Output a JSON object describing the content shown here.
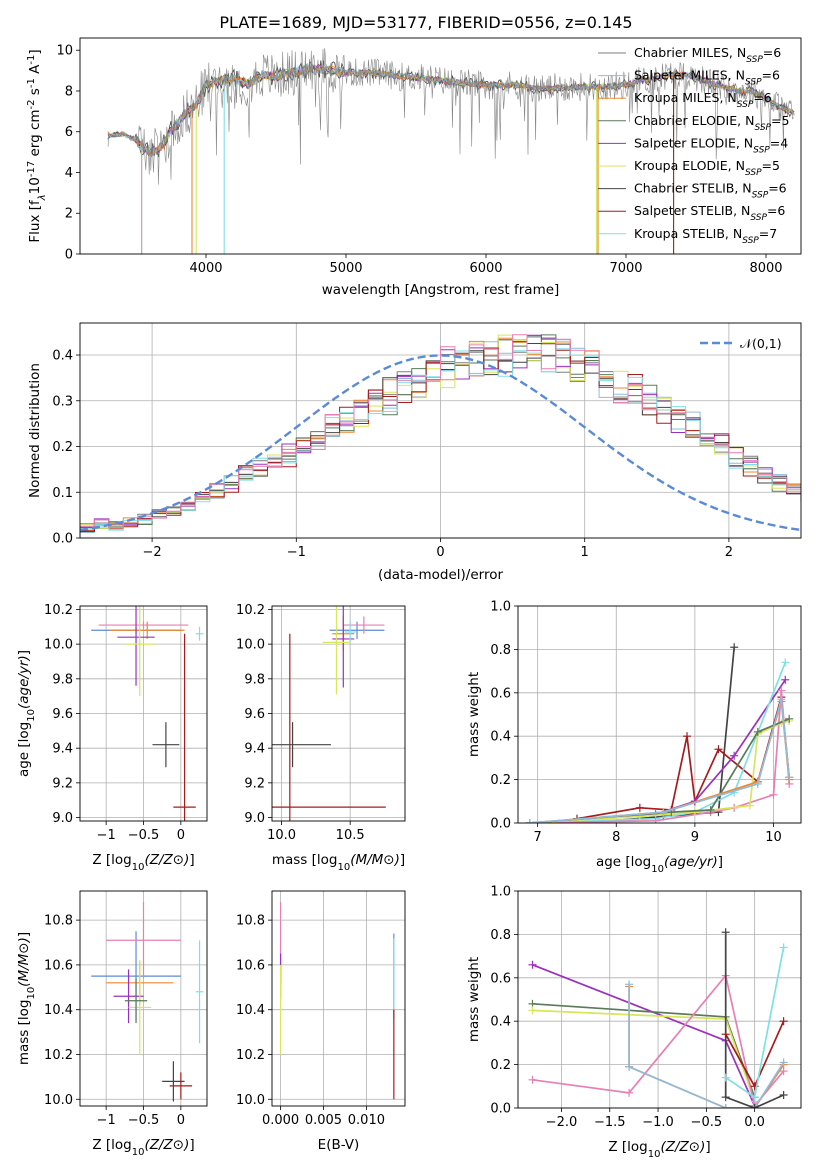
{
  "title": "PLATE=1689, MJD=53177, FIBERID=0556, z=0.145",
  "colors": {
    "chabrier_miles": "#7f7f7f",
    "salpeter_miles": "#8fbcdc",
    "kroupa_miles": "#ee8833",
    "chabrier_elodie": "#5a7a5a",
    "salpeter_elodie": "#9b30c0",
    "kroupa_elodie": "#d8e65a",
    "chabrier_stelib": "#444444",
    "salpeter_stelib": "#a51c1c",
    "kroupa_stelib": "#7fdfe6",
    "pink": "#e87fb3",
    "gauss": "#5b8bd8"
  },
  "legend": [
    {
      "label": "Chabrier MILES, N",
      "sub": "SSP",
      "suffix": "=6",
      "color": "#7f7f7f"
    },
    {
      "label": "Salpeter MILES, N",
      "sub": "SSP",
      "suffix": "=6",
      "color": "#8fbcdc"
    },
    {
      "label": "Kroupa MILES, N",
      "sub": "SSP",
      "suffix": "=6",
      "color": "#ee8833"
    },
    {
      "label": "Chabrier ELODIE, N",
      "sub": "SSP",
      "suffix": "=5",
      "color": "#5a7a5a"
    },
    {
      "label": "Salpeter ELODIE, N",
      "sub": "SSP",
      "suffix": "=4",
      "color": "#9b30c0"
    },
    {
      "label": "Kroupa ELODIE, N",
      "sub": "SSP",
      "suffix": "=5",
      "color": "#d8e65a"
    },
    {
      "label": "Chabrier STELIB, N",
      "sub": "SSP",
      "suffix": "=6",
      "color": "#444444"
    },
    {
      "label": "Salpeter STELIB, N",
      "sub": "SSP",
      "suffix": "=6",
      "color": "#a51c1c"
    },
    {
      "label": "Kroupa STELIB, N",
      "sub": "SSP",
      "suffix": "=7",
      "color": "#7fdfe6"
    }
  ],
  "chart_data": [
    {
      "type": "line",
      "title": "PLATE=1689, MJD=53177, FIBERID=0556, z=0.145",
      "xlabel": "wavelength [Angstrom, rest frame]",
      "ylabel_parts": [
        "Flux [f",
        "λ",
        "10",
        "-17",
        " erg cm",
        "-2",
        " s",
        "-1",
        " A",
        "-1",
        "]"
      ],
      "xlim": [
        3100,
        8250
      ],
      "ylim": [
        0,
        10.6
      ],
      "xticks": [
        4000,
        5000,
        6000,
        7000,
        8000
      ],
      "yticks": [
        0,
        2,
        4,
        6,
        8,
        10
      ],
      "continuum": {
        "x": [
          3300,
          3400,
          3500,
          3550,
          3600,
          3650,
          3700,
          3750,
          3800,
          3850,
          3900,
          3950,
          4000,
          4100,
          4200,
          4300,
          4400,
          4500,
          4600,
          4700,
          4800,
          4900,
          5000,
          5200,
          5400,
          5600,
          5800,
          6000,
          6200,
          6400,
          6600,
          6800,
          7000,
          7100,
          7200,
          7300,
          7400,
          7500,
          7600,
          7700,
          7800,
          7900,
          8000,
          8100,
          8200
        ],
        "y": [
          5.8,
          5.9,
          5.6,
          5.2,
          5.0,
          5.1,
          5.4,
          6.1,
          6.4,
          6.9,
          7.1,
          7.6,
          8.3,
          8.5,
          8.6,
          8.3,
          8.8,
          8.7,
          8.9,
          9.0,
          9.1,
          9.0,
          8.9,
          8.9,
          8.7,
          8.6,
          8.4,
          8.3,
          8.3,
          8.1,
          8.2,
          8.2,
          8.3,
          8.5,
          8.6,
          8.8,
          8.8,
          8.7,
          8.4,
          8.2,
          8.0,
          8.0,
          7.6,
          7.2,
          6.9
        ]
      }
    },
    {
      "type": "bar",
      "xlabel": "(data-model)/error",
      "ylabel": "Normed distribution",
      "xlim": [
        -2.5,
        2.5
      ],
      "ylim": [
        0,
        0.47
      ],
      "xticks": [
        -2,
        -1,
        0,
        1,
        2
      ],
      "yticks": [
        0.0,
        0.1,
        0.2,
        0.3,
        0.4
      ],
      "legend_label": "𝒩(0,1)",
      "bin_width": 0.1,
      "base_hist": [
        0.02,
        0.03,
        0.03,
        0.035,
        0.04,
        0.05,
        0.06,
        0.07,
        0.085,
        0.1,
        0.12,
        0.14,
        0.15,
        0.165,
        0.18,
        0.2,
        0.22,
        0.245,
        0.26,
        0.28,
        0.3,
        0.31,
        0.33,
        0.34,
        0.36,
        0.37,
        0.38,
        0.39,
        0.4,
        0.405,
        0.41,
        0.405,
        0.4,
        0.39,
        0.38,
        0.37,
        0.35,
        0.33,
        0.32,
        0.3,
        0.28,
        0.26,
        0.24,
        0.22,
        0.2,
        0.18,
        0.16,
        0.14,
        0.12,
        0.11,
        0.09,
        0.08,
        0.065,
        0.055,
        0.045,
        0.04,
        0.035,
        0.03,
        0.025,
        0.02
      ]
    },
    {
      "type": "scatter",
      "xlabel": "Z [log10(Z/Z⊙)]",
      "ylabel": "age [log10(age/yr)]",
      "xlim": [
        -1.35,
        0.35
      ],
      "ylim": [
        8.98,
        10.22
      ],
      "xticks": [
        -1,
        -0.5,
        0
      ],
      "yticks": [
        9.0,
        9.2,
        9.4,
        9.6,
        9.8,
        10.0,
        10.2
      ],
      "points": [
        {
          "x": -0.6,
          "y": 10.08,
          "xerr": 0.6,
          "yerr": 0.02,
          "color": "#5b8bd8"
        },
        {
          "x": -0.5,
          "y": 10.11,
          "xerr": 0.6,
          "yerr": 0.02,
          "color": "#e87fb3"
        },
        {
          "x": -0.45,
          "y": 10.08,
          "xerr": 0.5,
          "yerr": 0.05,
          "color": "#ee8833"
        },
        {
          "x": -0.6,
          "y": 10.04,
          "xerr": 0.25,
          "yerr": 0.28,
          "color": "#9b30c0"
        },
        {
          "x": -0.55,
          "y": 10.0,
          "xerr": 0.2,
          "yerr": 0.3,
          "color": "#d8e65a"
        },
        {
          "x": -0.2,
          "y": 9.42,
          "xerr": 0.18,
          "yerr": 0.13,
          "color": "#444444"
        },
        {
          "x": 0.05,
          "y": 9.06,
          "xerr": 0.15,
          "yerr": 1.0,
          "color": "#a51c1c"
        },
        {
          "x": 0.25,
          "y": 10.06,
          "xerr": 0.05,
          "yerr": 0.04,
          "color": "#7fdfe6"
        }
      ]
    },
    {
      "type": "scatter",
      "xlabel": "mass [log10(M/M⊙)]",
      "ylabel": "",
      "xlim": [
        9.93,
        10.9
      ],
      "ylim": [
        8.98,
        10.22
      ],
      "xticks": [
        10.0,
        10.5
      ],
      "yticks": [
        9.0,
        9.2,
        9.4,
        9.6,
        9.8,
        10.0,
        10.2
      ],
      "points": [
        {
          "x": 10.55,
          "y": 10.08,
          "xerr": 0.2,
          "yerr": 0.05,
          "color": "#5b8bd8"
        },
        {
          "x": 10.6,
          "y": 10.11,
          "xerr": 0.15,
          "yerr": 0.05,
          "color": "#e87fb3"
        },
        {
          "x": 10.45,
          "y": 10.06,
          "xerr": 0.08,
          "yerr": 0.1,
          "color": "#ee8833"
        },
        {
          "x": 10.45,
          "y": 10.03,
          "xerr": 0.08,
          "yerr": 0.28,
          "color": "#9b30c0"
        },
        {
          "x": 10.4,
          "y": 10.01,
          "xerr": 0.1,
          "yerr": 0.3,
          "color": "#d8e65a"
        },
        {
          "x": 10.08,
          "y": 9.42,
          "xerr": 0.28,
          "yerr": 0.13,
          "color": "#444444"
        },
        {
          "x": 10.06,
          "y": 9.06,
          "xerr": 0.7,
          "yerr": 1.0,
          "color": "#a51c1c"
        },
        {
          "x": 10.5,
          "y": 10.07,
          "xerr": 0.04,
          "yerr": 0.06,
          "color": "#7fdfe6"
        }
      ]
    },
    {
      "type": "line",
      "xlabel": "age [log10(age/yr)]",
      "ylabel": "mass weight",
      "xlim": [
        6.75,
        10.35
      ],
      "ylim": [
        0,
        1.0
      ],
      "xticks": [
        7,
        8,
        9,
        10
      ],
      "yticks": [
        0.0,
        0.2,
        0.4,
        0.6,
        0.8,
        1.0
      ],
      "series": [
        {
          "color": "#444444",
          "x": [
            7.6,
            8.6,
            9.3,
            9.5
          ],
          "y": [
            0.0,
            0.03,
            0.05,
            0.81
          ]
        },
        {
          "color": "#a51c1c",
          "x": [
            7.5,
            8.3,
            8.7,
            8.9,
            9.0,
            9.3,
            9.8,
            10.1,
            10.2
          ],
          "y": [
            0.02,
            0.07,
            0.06,
            0.4,
            0.1,
            0.34,
            0.19,
            0.58,
            0.21
          ]
        },
        {
          "color": "#9b30c0",
          "x": [
            6.9,
            8.5,
            9.0,
            9.5,
            10.15
          ],
          "y": [
            0.0,
            0.04,
            0.1,
            0.31,
            0.66
          ]
        },
        {
          "color": "#7fdfe6",
          "x": [
            6.9,
            8.5,
            9.0,
            9.5,
            10.15
          ],
          "y": [
            0.0,
            0.02,
            0.05,
            0.14,
            0.74
          ]
        },
        {
          "color": "#e87fb3",
          "x": [
            6.9,
            8.5,
            9.2,
            9.5,
            10.0,
            10.1,
            10.2
          ],
          "y": [
            0.0,
            0.01,
            0.05,
            0.07,
            0.13,
            0.61,
            0.18
          ]
        },
        {
          "color": "#d8e65a",
          "x": [
            6.9,
            8.3,
            9.0,
            9.7,
            9.8,
            10.1,
            10.2
          ],
          "y": [
            0.0,
            0.03,
            0.05,
            0.08,
            0.41,
            0.46,
            0.47
          ]
        },
        {
          "color": "#5a7a5a",
          "x": [
            6.9,
            8.7,
            9.2,
            9.8,
            10.2
          ],
          "y": [
            0.0,
            0.05,
            0.06,
            0.42,
            0.48
          ]
        },
        {
          "color": "#ee8833",
          "x": [
            6.9,
            8.6,
            9.8,
            10.1,
            10.2
          ],
          "y": [
            0.0,
            0.05,
            0.19,
            0.56,
            0.2
          ]
        },
        {
          "color": "#8fbcdc",
          "x": [
            6.9,
            8.6,
            9.8,
            10.1,
            10.2
          ],
          "y": [
            0.0,
            0.05,
            0.18,
            0.57,
            0.21
          ]
        }
      ]
    },
    {
      "type": "scatter",
      "xlabel": "Z [log10(Z/Z⊙)]",
      "ylabel": "mass [log10(M/M⊙)]",
      "xlim": [
        -1.35,
        0.35
      ],
      "ylim": [
        9.97,
        10.93
      ],
      "xticks": [
        -1,
        -0.5,
        0
      ],
      "yticks": [
        10.0,
        10.2,
        10.4,
        10.6,
        10.8
      ],
      "points": [
        {
          "x": -0.6,
          "y": 10.55,
          "xerr": 0.6,
          "yerr": 0.2,
          "color": "#5b8bd8"
        },
        {
          "x": -0.5,
          "y": 10.71,
          "xerr": 0.5,
          "yerr": 0.17,
          "color": "#e87fb3"
        },
        {
          "x": -0.55,
          "y": 10.52,
          "xerr": 0.45,
          "yerr": 0.1,
          "color": "#ee8833"
        },
        {
          "x": -0.7,
          "y": 10.46,
          "xerr": 0.2,
          "yerr": 0.12,
          "color": "#9b30c0"
        },
        {
          "x": -0.55,
          "y": 10.41,
          "xerr": 0.15,
          "yerr": 0.21,
          "color": "#d8e65a"
        },
        {
          "x": -0.6,
          "y": 10.44,
          "xerr": 0.15,
          "yerr": 0.1,
          "color": "#5a7a5a"
        },
        {
          "x": -0.1,
          "y": 10.08,
          "xerr": 0.15,
          "yerr": 0.09,
          "color": "#444444"
        },
        {
          "x": 0.0,
          "y": 10.06,
          "xerr": 0.15,
          "yerr": 0.06,
          "color": "#a51c1c"
        },
        {
          "x": 0.25,
          "y": 10.48,
          "xerr": 0.05,
          "yerr": 0.23,
          "color": "#7fdfe6"
        }
      ]
    },
    {
      "type": "scatter",
      "xlabel": "E(B-V)",
      "ylabel": "",
      "xlim": [
        -0.001,
        0.0145
      ],
      "ylim": [
        9.97,
        10.93
      ],
      "xticks": [
        0.0,
        0.005,
        0.01
      ],
      "ytick_values": [
        10.0,
        10.2,
        10.4,
        10.6,
        10.8
      ],
      "points": [
        {
          "x": 0.0,
          "y": 10.7,
          "xerr": 0.0,
          "yerr": 0.18,
          "color": "#e87fb3"
        },
        {
          "x": 0.0,
          "y": 10.55,
          "xerr": 0.0,
          "yerr": 0.1,
          "color": "#9b30c0"
        },
        {
          "x": 0.0,
          "y": 10.4,
          "xerr": 0.0,
          "yerr": 0.2,
          "color": "#d8e65a"
        },
        {
          "x": 0.0132,
          "y": 10.55,
          "xerr": 0.0,
          "yerr": 0.19,
          "color": "#5b8bd8"
        },
        {
          "x": 0.0132,
          "y": 10.56,
          "xerr": 0.0,
          "yerr": 0.16,
          "color": "#7fdfe6"
        },
        {
          "x": 0.0132,
          "y": 10.2,
          "xerr": 0.0,
          "yerr": 0.2,
          "color": "#a51c1c"
        }
      ]
    },
    {
      "type": "line",
      "xlabel": "Z [log10(Z/Z⊙)]",
      "ylabel": "mass weight",
      "xlim": [
        -2.45,
        0.48
      ],
      "ylim": [
        0,
        1.0
      ],
      "xticks": [
        -2.0,
        -1.5,
        -1.0,
        -0.5,
        0.0
      ],
      "yticks": [
        0.0,
        0.2,
        0.4,
        0.6,
        0.8,
        1.0
      ],
      "series": [
        {
          "color": "#9b30c0",
          "x": [
            -2.3,
            -0.3,
            0.0
          ],
          "y": [
            0.66,
            0.31,
            0.01
          ]
        },
        {
          "color": "#5a7a5a",
          "x": [
            -2.3,
            -0.3,
            0.0
          ],
          "y": [
            0.48,
            0.42,
            0.05
          ]
        },
        {
          "color": "#d8e65a",
          "x": [
            -2.3,
            -0.3,
            0.0
          ],
          "y": [
            0.45,
            0.41,
            0.03
          ]
        },
        {
          "color": "#e87fb3",
          "x": [
            -2.3,
            -1.3,
            -0.3,
            0.0,
            0.3
          ],
          "y": [
            0.13,
            0.07,
            0.61,
            0.01,
            0.17
          ]
        },
        {
          "color": "#ee8833",
          "x": [
            -1.3,
            -1.3,
            -0.3,
            0.0,
            0.3
          ],
          "y": [
            0.56,
            0.19,
            0.0,
            0.0,
            0.2
          ]
        },
        {
          "color": "#8fbcdc",
          "x": [
            -1.3,
            -1.3,
            -0.3,
            0.0,
            0.3
          ],
          "y": [
            0.57,
            0.19,
            0.0,
            0.0,
            0.21
          ]
        },
        {
          "color": "#444444",
          "x": [
            -0.3,
            -0.3,
            0.0,
            0.3
          ],
          "y": [
            0.81,
            0.05,
            0.0,
            0.06
          ]
        },
        {
          "color": "#a51c1c",
          "x": [
            -0.3,
            0.0,
            0.3
          ],
          "y": [
            0.34,
            0.1,
            0.4
          ]
        },
        {
          "color": "#7fdfe6",
          "x": [
            -0.3,
            0.0,
            0.3
          ],
          "y": [
            0.14,
            0.05,
            0.74
          ]
        }
      ]
    }
  ]
}
